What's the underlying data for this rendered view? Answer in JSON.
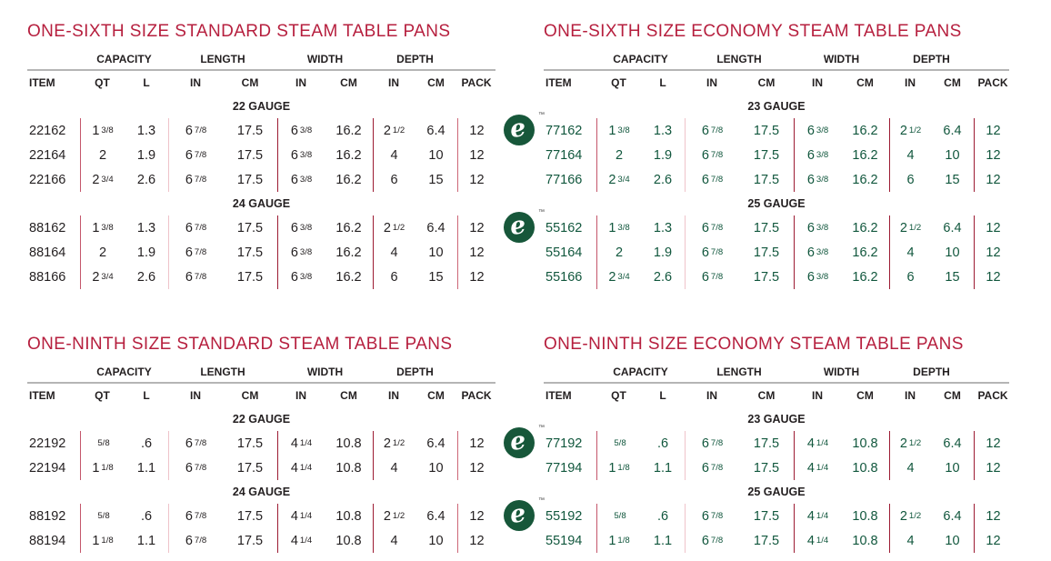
{
  "colors": {
    "title_red": "#b61f3e",
    "standard_text": "#231f20",
    "economy_green": "#11573d",
    "logo_green": "#17573a",
    "header_rule_gray": "#b5b5b5",
    "divider_light_pink": "#efc3ca",
    "divider_medium_rose": "#c4566b",
    "divider_dark_red": "#9c1a32"
  },
  "logo": {
    "glyph": "e",
    "tm": "TM",
    "meaning": "economy-line-logo"
  },
  "column_names": [
    "item",
    "qt",
    "l",
    "length-in",
    "length-cm",
    "width-in",
    "width-cm",
    "depth-in",
    "depth-cm",
    "pack"
  ],
  "tables": [
    {
      "id": "one-sixth-standard",
      "title": "ONE-SIXTH SIZE STANDARD STEAM TABLE PANS",
      "economy": false,
      "group_headers": [
        "CAPACITY",
        "LENGTH",
        "WIDTH",
        "DEPTH"
      ],
      "col_headers": [
        "ITEM",
        "QT",
        "L",
        "IN",
        "CM",
        "IN",
        "CM",
        "IN",
        "CM",
        "PACK"
      ],
      "sections": [
        {
          "gauge": "22 GAUGE",
          "rows": [
            {
              "logo": false,
              "cells": [
                "22162",
                "1 3/8",
                "1.3",
                "6 7/8",
                "17.5",
                "6 3/8",
                "16.2",
                "2 1/2",
                "6.4",
                "12"
              ]
            },
            {
              "logo": false,
              "cells": [
                "22164",
                "2",
                "1.9",
                "6 7/8",
                "17.5",
                "6 3/8",
                "16.2",
                "4",
                "10",
                "12"
              ]
            },
            {
              "logo": false,
              "cells": [
                "22166",
                "2 3/4",
                "2.6",
                "6 7/8",
                "17.5",
                "6 3/8",
                "16.2",
                "6",
                "15",
                "12"
              ]
            }
          ]
        },
        {
          "gauge": "24 GAUGE",
          "rows": [
            {
              "logo": false,
              "cells": [
                "88162",
                "1 3/8",
                "1.3",
                "6 7/8",
                "17.5",
                "6 3/8",
                "16.2",
                "2 1/2",
                "6.4",
                "12"
              ]
            },
            {
              "logo": false,
              "cells": [
                "88164",
                "2",
                "1.9",
                "6 7/8",
                "17.5",
                "6 3/8",
                "16.2",
                "4",
                "10",
                "12"
              ]
            },
            {
              "logo": false,
              "cells": [
                "88166",
                "2 3/4",
                "2.6",
                "6 7/8",
                "17.5",
                "6 3/8",
                "16.2",
                "6",
                "15",
                "12"
              ]
            }
          ]
        }
      ]
    },
    {
      "id": "one-sixth-economy",
      "title": "ONE-SIXTH SIZE ECONOMY STEAM TABLE PANS",
      "economy": true,
      "group_headers": [
        "CAPACITY",
        "LENGTH",
        "WIDTH",
        "DEPTH"
      ],
      "col_headers": [
        "ITEM",
        "QT",
        "L",
        "IN",
        "CM",
        "IN",
        "CM",
        "IN",
        "CM",
        "PACK"
      ],
      "sections": [
        {
          "gauge": "23 GAUGE",
          "rows": [
            {
              "logo": true,
              "cells": [
                "77162",
                "1 3/8",
                "1.3",
                "6 7/8",
                "17.5",
                "6 3/8",
                "16.2",
                "2 1/2",
                "6.4",
                "12"
              ]
            },
            {
              "logo": false,
              "cells": [
                "77164",
                "2",
                "1.9",
                "6 7/8",
                "17.5",
                "6 3/8",
                "16.2",
                "4",
                "10",
                "12"
              ]
            },
            {
              "logo": false,
              "cells": [
                "77166",
                "2 3/4",
                "2.6",
                "6 7/8",
                "17.5",
                "6 3/8",
                "16.2",
                "6",
                "15",
                "12"
              ]
            }
          ]
        },
        {
          "gauge": "25 GAUGE",
          "rows": [
            {
              "logo": true,
              "cells": [
                "55162",
                "1 3/8",
                "1.3",
                "6 7/8",
                "17.5",
                "6 3/8",
                "16.2",
                "2 1/2",
                "6.4",
                "12"
              ]
            },
            {
              "logo": false,
              "cells": [
                "55164",
                "2",
                "1.9",
                "6 7/8",
                "17.5",
                "6 3/8",
                "16.2",
                "4",
                "10",
                "12"
              ]
            },
            {
              "logo": false,
              "cells": [
                "55166",
                "2 3/4",
                "2.6",
                "6 7/8",
                "17.5",
                "6 3/8",
                "16.2",
                "6",
                "15",
                "12"
              ]
            }
          ]
        }
      ]
    },
    {
      "id": "one-ninth-standard",
      "title": "ONE-NINTH SIZE STANDARD STEAM TABLE PANS",
      "economy": false,
      "group_headers": [
        "CAPACITY",
        "LENGTH",
        "WIDTH",
        "DEPTH"
      ],
      "col_headers": [
        "ITEM",
        "QT",
        "L",
        "IN",
        "CM",
        "IN",
        "CM",
        "IN",
        "CM",
        "PACK"
      ],
      "sections": [
        {
          "gauge": "22 GAUGE",
          "rows": [
            {
              "logo": false,
              "cells": [
                "22192",
                "5/8",
                ".6",
                "6 7/8",
                "17.5",
                "4 1/4",
                "10.8",
                "2 1/2",
                "6.4",
                "12"
              ]
            },
            {
              "logo": false,
              "cells": [
                "22194",
                "1 1/8",
                "1.1",
                "6 7/8",
                "17.5",
                "4 1/4",
                "10.8",
                "4",
                "10",
                "12"
              ]
            }
          ]
        },
        {
          "gauge": "24 GAUGE",
          "rows": [
            {
              "logo": false,
              "cells": [
                "88192",
                "5/8",
                ".6",
                "6 7/8",
                "17.5",
                "4 1/4",
                "10.8",
                "2 1/2",
                "6.4",
                "12"
              ]
            },
            {
              "logo": false,
              "cells": [
                "88194",
                "1 1/8",
                "1.1",
                "6 7/8",
                "17.5",
                "4 1/4",
                "10.8",
                "4",
                "10",
                "12"
              ]
            }
          ]
        }
      ]
    },
    {
      "id": "one-ninth-economy",
      "title": "ONE-NINTH SIZE ECONOMY STEAM TABLE PANS",
      "economy": true,
      "group_headers": [
        "CAPACITY",
        "LENGTH",
        "WIDTH",
        "DEPTH"
      ],
      "col_headers": [
        "ITEM",
        "QT",
        "L",
        "IN",
        "CM",
        "IN",
        "CM",
        "IN",
        "CM",
        "PACK"
      ],
      "sections": [
        {
          "gauge": "23 GAUGE",
          "rows": [
            {
              "logo": true,
              "cells": [
                "77192",
                "5/8",
                ".6",
                "6 7/8",
                "17.5",
                "4 1/4",
                "10.8",
                "2 1/2",
                "6.4",
                "12"
              ]
            },
            {
              "logo": false,
              "cells": [
                "77194",
                "1 1/8",
                "1.1",
                "6 7/8",
                "17.5",
                "4 1/4",
                "10.8",
                "4",
                "10",
                "12"
              ]
            }
          ]
        },
        {
          "gauge": "25 GAUGE",
          "rows": [
            {
              "logo": true,
              "cells": [
                "55192",
                "5/8",
                ".6",
                "6 7/8",
                "17.5",
                "4 1/4",
                "10.8",
                "2 1/2",
                "6.4",
                "12"
              ]
            },
            {
              "logo": false,
              "cells": [
                "55194",
                "1 1/8",
                "1.1",
                "6 7/8",
                "17.5",
                "4 1/4",
                "10.8",
                "4",
                "10",
                "12"
              ]
            }
          ]
        }
      ]
    }
  ]
}
